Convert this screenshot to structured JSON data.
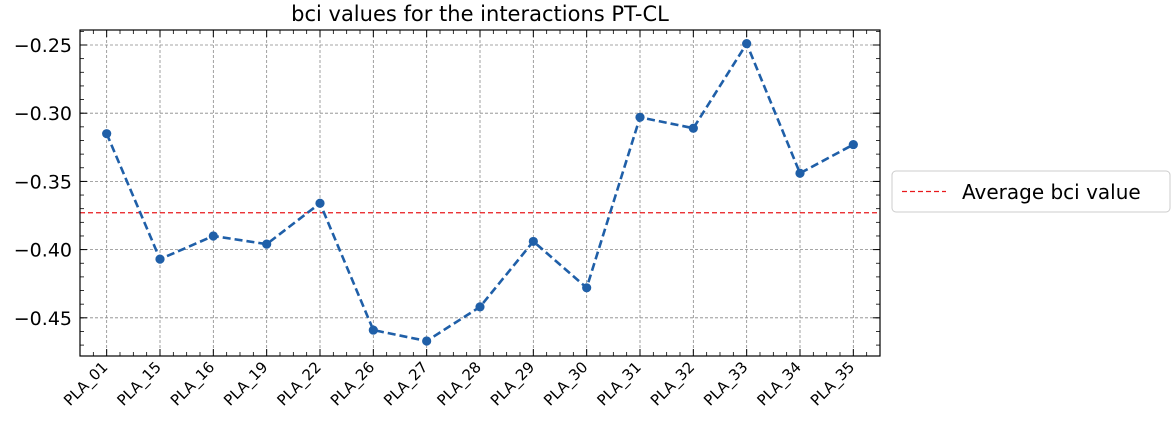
{
  "chart_data": {
    "type": "line",
    "title": "bci values for the interactions PT-CL",
    "xlabel": "",
    "ylabel": "",
    "categories": [
      "PLA_01",
      "PLA_15",
      "PLA_16",
      "PLA_19",
      "PLA_22",
      "PLA_26",
      "PLA_27",
      "PLA_28",
      "PLA_29",
      "PLA_30",
      "PLA_31",
      "PLA_32",
      "PLA_33",
      "PLA_34",
      "PLA_35"
    ],
    "series": [
      {
        "values": [
          -0.315,
          -0.407,
          -0.39,
          -0.396,
          -0.366,
          -0.459,
          -0.467,
          -0.442,
          -0.394,
          -0.428,
          -0.303,
          -0.311,
          -0.249,
          -0.344,
          -0.323
        ],
        "color": "#1f5fa8",
        "style": "dashed with circle markers"
      }
    ],
    "reference_line": {
      "name": "Average bci value",
      "value": -0.373,
      "color": "#e8191c",
      "style": "dashed"
    },
    "ylim": [
      -0.478,
      -0.239
    ],
    "yticks": [
      -0.25,
      -0.3,
      -0.35,
      -0.4,
      -0.45
    ],
    "ytick_labels": [
      "−0.25",
      "−0.30",
      "−0.35",
      "−0.40",
      "−0.45"
    ],
    "grid": true,
    "legend_placement": "right, outside plot"
  }
}
